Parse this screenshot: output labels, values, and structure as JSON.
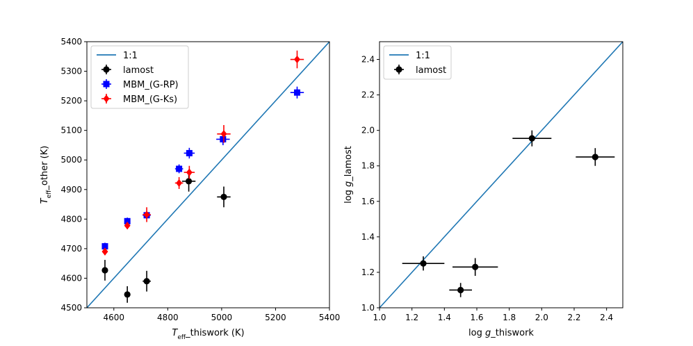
{
  "chart_data": [
    {
      "type": "scatter",
      "xlabel": {
        "main": "T",
        "sub": "eff",
        "rest": "_thiswork (K)"
      },
      "ylabel": {
        "main": "T",
        "sub": "eff",
        "rest": "_other (K)"
      },
      "xlim": [
        4500,
        5400
      ],
      "ylim": [
        4500,
        5400
      ],
      "xticks": [
        4600,
        4800,
        5000,
        5200,
        5400
      ],
      "yticks": [
        4500,
        4600,
        4700,
        4800,
        4900,
        5000,
        5100,
        5200,
        5300,
        5400
      ],
      "legend_position": "top-left",
      "colors": {
        "line": "#1f77b4",
        "lamost": "#000000",
        "gp": "#0000ff",
        "gk": "#ff0000"
      },
      "series": [
        {
          "name": "1:1",
          "kind": "line",
          "x": [
            4500,
            5400
          ],
          "y": [
            4500,
            5400
          ]
        },
        {
          "name": "lamost",
          "kind": "points",
          "marker": "circle",
          "x": [
            4567,
            4650,
            4722,
            4878,
            5008
          ],
          "y": [
            4627,
            4545,
            4590,
            4928,
            4875
          ],
          "xerr": [
            10,
            10,
            15,
            25,
            25
          ],
          "yerr": [
            35,
            28,
            35,
            35,
            35
          ]
        },
        {
          "name": "MBM_(G-RP)",
          "kind": "points",
          "marker": "square",
          "x": [
            4567,
            4650,
            4722,
            4842,
            4880,
            5005,
            5280
          ],
          "y": [
            4708,
            4793,
            4813,
            4970,
            5023,
            5070,
            5228
          ],
          "xerr": [
            10,
            10,
            15,
            15,
            20,
            25,
            25
          ],
          "yerr": [
            12,
            12,
            12,
            15,
            18,
            20,
            20
          ]
        },
        {
          "name": "MBM_(G-Ks)",
          "kind": "points",
          "marker": "diamond",
          "x": [
            4567,
            4650,
            4722,
            4842,
            4880,
            5008,
            5280
          ],
          "y": [
            4690,
            4778,
            4815,
            4922,
            4958,
            5088,
            5340
          ],
          "xerr": [
            10,
            10,
            15,
            15,
            20,
            25,
            25
          ],
          "yerr": [
            12,
            12,
            25,
            20,
            22,
            30,
            30
          ]
        }
      ]
    },
    {
      "type": "scatter",
      "xlabel": {
        "main": "log ",
        "ital": "g",
        "rest": "_thiswork"
      },
      "ylabel": {
        "main": "log ",
        "ital": "g",
        "rest": "_lamost"
      },
      "xlim": [
        1.0,
        2.5
      ],
      "ylim": [
        1.0,
        2.5
      ],
      "xticks": [
        1.0,
        1.2,
        1.4,
        1.6,
        1.8,
        2.0,
        2.2,
        2.4
      ],
      "yticks": [
        1.0,
        1.2,
        1.4,
        1.6,
        1.8,
        2.0,
        2.2,
        2.4
      ],
      "legend_position": "top-left",
      "colors": {
        "line": "#1f77b4",
        "lamost": "#000000"
      },
      "series": [
        {
          "name": "1:1",
          "kind": "line",
          "x": [
            1.0,
            2.5
          ],
          "y": [
            1.0,
            2.5
          ]
        },
        {
          "name": "lamost",
          "kind": "points",
          "marker": "circle",
          "x": [
            1.27,
            1.5,
            1.59,
            1.94,
            2.33
          ],
          "y": [
            1.25,
            1.1,
            1.23,
            1.955,
            1.85
          ],
          "xerr": [
            0.13,
            0.07,
            0.14,
            0.12,
            0.12
          ],
          "yerr": [
            0.04,
            0.04,
            0.05,
            0.045,
            0.05
          ]
        }
      ]
    }
  ]
}
